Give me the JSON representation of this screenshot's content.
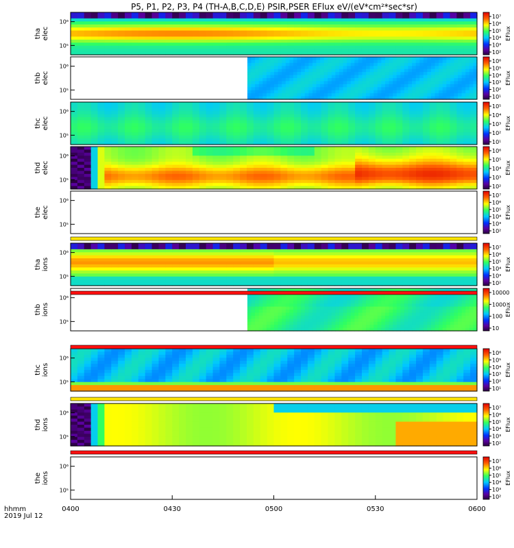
{
  "chart_data": {
    "type": "heatmap",
    "title": "P5, P1, P2, P3, P4 (TH-A,B,C,D,E) PSIR,PSER EFlux eV/(eV*cm²*sec*sr)",
    "x_label_line1": "hhmm",
    "x_label_line2": "2019 Jul 12",
    "x_ticks": [
      "0400",
      "0430",
      "0500",
      "0530",
      "0600"
    ],
    "colorbar_label": "EFlux",
    "panels": [
      {
        "id": "tha_elec",
        "ylabel": [
          "tha",
          "elec"
        ],
        "yticks": [
          "10⁶",
          "10⁵"
        ],
        "cbticks": [
          "10⁷",
          "10⁶",
          "10⁵",
          "10⁴",
          "10³",
          "10²"
        ],
        "data_start": 0.0,
        "profile": "tha_e"
      },
      {
        "id": "thb_elec",
        "ylabel": [
          "thb",
          "elec"
        ],
        "yticks": [
          "10⁶",
          "10⁵"
        ],
        "cbticks": [
          "10⁶",
          "10⁵",
          "10⁴",
          "10³",
          "10²",
          "10¹"
        ],
        "data_start": 0.435,
        "profile": "cool"
      },
      {
        "id": "thc_elec",
        "ylabel": [
          "thc",
          "elec"
        ],
        "yticks": [
          "10⁶",
          "10⁵"
        ],
        "cbticks": [
          "10⁵",
          "10⁴",
          "10³",
          "10²",
          "10¹"
        ],
        "data_start": 0.0,
        "profile": "cool2"
      },
      {
        "id": "thd_elec",
        "ylabel": [
          "thd",
          "elec"
        ],
        "yticks": [
          "10⁶",
          "10⁵"
        ],
        "cbticks": [
          "10⁶",
          "10⁵",
          "10⁴",
          "10³",
          "10²"
        ],
        "data_start": 0.0,
        "profile": "thd_e"
      },
      {
        "id": "the_elec",
        "ylabel": [
          "the",
          "elec"
        ],
        "yticks": [
          "10⁶",
          "10⁵"
        ],
        "cbticks": [
          "10⁷",
          "10⁶",
          "10⁵",
          "10⁴",
          "10³",
          "10²"
        ],
        "data_start": null,
        "profile": "none"
      },
      {
        "id": "tha_ions",
        "ylabel": [
          "tha",
          "ions"
        ],
        "yticks": [
          "10⁶",
          "10⁵"
        ],
        "cbticks": [
          "10⁷",
          "10⁶",
          "10⁵",
          "10⁴",
          "10³",
          "10²"
        ],
        "data_start": 0.0,
        "profile": "tha_i"
      },
      {
        "id": "thb_ions",
        "ylabel": [
          "thb",
          "ions"
        ],
        "yticks": [
          "10⁶",
          "10⁵"
        ],
        "cbticks": [
          "10000",
          "1000",
          "100",
          "10"
        ],
        "data_start": 0.435,
        "profile": "thb_i"
      },
      {
        "id": "thc_ions",
        "ylabel": [
          "thc",
          "ions"
        ],
        "yticks": [
          "10⁶",
          "10⁵"
        ],
        "cbticks": [
          "10⁶",
          "10⁵",
          "10⁴",
          "10³",
          "10²",
          "10¹"
        ],
        "data_start": 0.0,
        "profile": "thc_i"
      },
      {
        "id": "thd_ions",
        "ylabel": [
          "thd",
          "ions"
        ],
        "yticks": [
          "10⁶",
          "10⁵"
        ],
        "cbticks": [
          "10⁷",
          "10⁶",
          "10⁵",
          "10⁴",
          "10³",
          "10²"
        ],
        "data_start": 0.0,
        "profile": "thd_i"
      },
      {
        "id": "the_ions",
        "ylabel": [
          "the",
          "ions"
        ],
        "yticks": [
          "10⁶",
          "10⁵"
        ],
        "cbticks": [
          "10⁷",
          "10⁶",
          "10⁵",
          "10⁴",
          "10³",
          "10²"
        ],
        "data_start": null,
        "profile": "none"
      }
    ],
    "quality_bars": [
      {
        "after_panel": 4,
        "color": "#ffe600"
      },
      {
        "after_panel": 5,
        "color": "#ff1010"
      },
      {
        "after_panel": 6,
        "color": "#ff1010"
      },
      {
        "after_panel": 7,
        "color": "#ffe600"
      },
      {
        "after_panel": 8,
        "color": "#ff1010"
      }
    ]
  }
}
